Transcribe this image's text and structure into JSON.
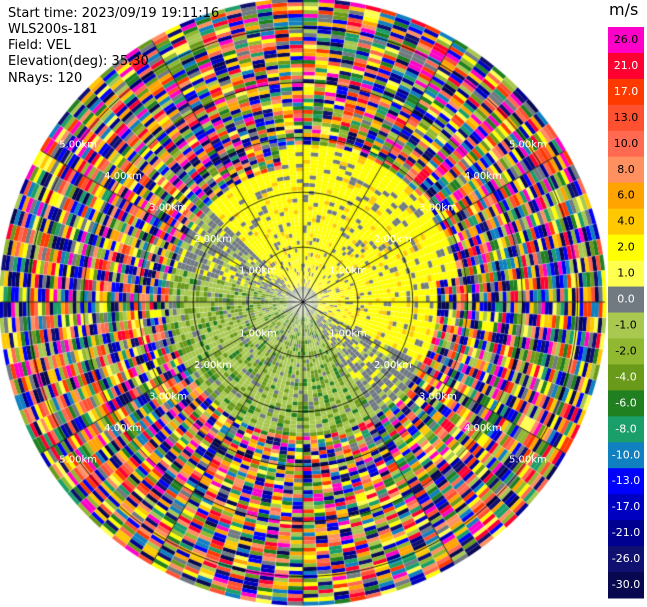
{
  "header": {
    "start_time": "Start time: 2023/09/19 19:11:16",
    "instrument": "WLS200s-181",
    "field": "Field: VEL",
    "elevation": "Elevation(deg): 35.30",
    "nrays": "NRays: 120"
  },
  "chart_data": {
    "type": "heatmap",
    "subtype": "polar-ppi",
    "unit": "m/s",
    "rays": 120,
    "range_rings": [
      {
        "label": "1.00km"
      },
      {
        "label": "2.00km"
      },
      {
        "label": "3.00km"
      },
      {
        "label": "4.00km"
      },
      {
        "label": "5.00km"
      }
    ],
    "max_range_km": 5.5,
    "colorbar": {
      "ticks": [
        "26.0",
        "21.0",
        "17.0",
        "13.0",
        "10.0",
        "8.0",
        "6.0",
        "4.0",
        "2.0",
        "1.0",
        "0.0",
        "-1.0",
        "-2.0",
        "-4.0",
        "-6.0",
        "-8.0",
        "-10.0",
        "-13.0",
        "-17.0",
        "-21.0",
        "-26.0",
        "-30.0"
      ],
      "colors": [
        "#ff00c8",
        "#ff0030",
        "#ff3a00",
        "#ff5030",
        "#ff6a50",
        "#ff9060",
        "#ffa400",
        "#ffc800",
        "#ffff00",
        "#ffff50",
        "#707a80",
        "#a8c850",
        "#90b830",
        "#6a9a1a",
        "#208020",
        "#1a9f6a",
        "#1080c0",
        "#0000ff",
        "#0000c0",
        "#000090",
        "#101070",
        "#080850"
      ]
    }
  }
}
